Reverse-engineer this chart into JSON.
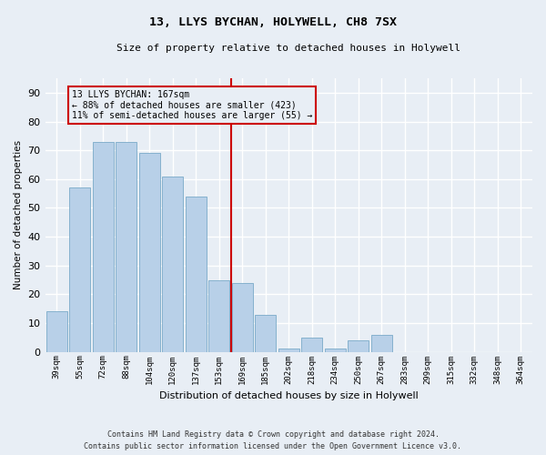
{
  "title": "13, LLYS BYCHAN, HOLYWELL, CH8 7SX",
  "subtitle": "Size of property relative to detached houses in Holywell",
  "xlabel": "Distribution of detached houses by size in Holywell",
  "ylabel": "Number of detached properties",
  "categories": [
    "39sqm",
    "55sqm",
    "72sqm",
    "88sqm",
    "104sqm",
    "120sqm",
    "137sqm",
    "153sqm",
    "169sqm",
    "185sqm",
    "202sqm",
    "218sqm",
    "234sqm",
    "250sqm",
    "267sqm",
    "283sqm",
    "299sqm",
    "315sqm",
    "332sqm",
    "348sqm",
    "364sqm"
  ],
  "values": [
    14,
    57,
    73,
    73,
    69,
    61,
    54,
    25,
    24,
    13,
    1,
    5,
    1,
    4,
    6,
    0,
    0,
    0,
    0,
    0,
    0
  ],
  "bar_color": "#b8d0e8",
  "bar_edgecolor": "#7aaac8",
  "vline_color": "#cc0000",
  "annotation_text": "13 LLYS BYCHAN: 167sqm\n← 88% of detached houses are smaller (423)\n11% of semi-detached houses are larger (55) →",
  "annotation_box_color": "#cc0000",
  "ylim": [
    0,
    95
  ],
  "yticks": [
    0,
    10,
    20,
    30,
    40,
    50,
    60,
    70,
    80,
    90
  ],
  "bg_color": "#e8eef5",
  "grid_color": "#ffffff",
  "footer_line1": "Contains HM Land Registry data © Crown copyright and database right 2024.",
  "footer_line2": "Contains public sector information licensed under the Open Government Licence v3.0."
}
